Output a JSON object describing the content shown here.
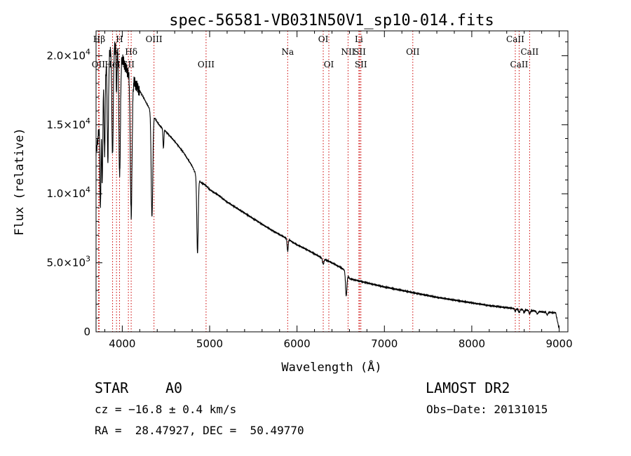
{
  "chart_data": {
    "type": "line",
    "title": "spec-56581-VB031N50V1_sp10-014.fits",
    "xlabel": "Wavelength (Å)",
    "ylabel": "Flux (relative)",
    "xlim": [
      3700,
      9100
    ],
    "ylim": [
      0,
      21800
    ],
    "x_ticks": [
      {
        "value": 4000,
        "label": "4000"
      },
      {
        "value": 5000,
        "label": "5000"
      },
      {
        "value": 6000,
        "label": "6000"
      },
      {
        "value": 7000,
        "label": "7000"
      },
      {
        "value": 8000,
        "label": "8000"
      },
      {
        "value": 9000,
        "label": "9000"
      }
    ],
    "y_ticks": [
      {
        "value": 0,
        "label": "0",
        "exp": ""
      },
      {
        "value": 5000,
        "label": "5.0×10",
        "exp": "3"
      },
      {
        "value": 10000,
        "label": "1.0×10",
        "exp": "4"
      },
      {
        "value": 15000,
        "label": "1.5×10",
        "exp": "4"
      },
      {
        "value": 20000,
        "label": "2.0×10",
        "exp": "4"
      }
    ],
    "grid": false,
    "line_color": "#000000",
    "marker_color": "#cc0000",
    "spectral_lines": [
      {
        "label": "Hβ",
        "x": 3736,
        "row": 0
      },
      {
        "label": "OII",
        "x": 3727,
        "row": 2
      },
      {
        "label": "K",
        "x": 3934,
        "row": 1
      },
      {
        "label": "H",
        "x": 3969,
        "row": 0
      },
      {
        "label": "HeI",
        "x": 3889,
        "row": 2
      },
      {
        "label": "Hδ",
        "x": 4102,
        "row": 1
      },
      {
        "label": "SII",
        "x": 4070,
        "row": 2
      },
      {
        "label": "OIII",
        "x": 4363,
        "row": 0
      },
      {
        "label": "OIII",
        "x": 4959,
        "row": 2
      },
      {
        "label": "Na",
        "x": 5893,
        "row": 1
      },
      {
        "label": "OI",
        "x": 6300,
        "row": 0
      },
      {
        "label": "OI",
        "x": 6364,
        "row": 2
      },
      {
        "label": "Li",
        "x": 6708,
        "row": 0
      },
      {
        "label": "NII",
        "x": 6584,
        "row": 1
      },
      {
        "label": "SII",
        "x": 6717,
        "row": 1
      },
      {
        "label": "SII",
        "x": 6731,
        "row": 2
      },
      {
        "label": "OII",
        "x": 7325,
        "row": 1
      },
      {
        "label": "CaII",
        "x": 8498,
        "row": 0
      },
      {
        "label": "CaII",
        "x": 8662,
        "row": 1
      },
      {
        "label": "CaII",
        "x": 8542,
        "row": 2
      }
    ],
    "continuum": [
      [
        3700,
        13000
      ],
      [
        3730,
        14500
      ],
      [
        3760,
        16500
      ],
      [
        3790,
        18500
      ],
      [
        3820,
        19500
      ],
      [
        3860,
        20300
      ],
      [
        3900,
        20800
      ],
      [
        3950,
        20500
      ],
      [
        4000,
        19800
      ],
      [
        4060,
        18900
      ],
      [
        4120,
        18200
      ],
      [
        4180,
        17700
      ],
      [
        4240,
        17000
      ],
      [
        4300,
        16300
      ],
      [
        4360,
        15600
      ],
      [
        4420,
        15000
      ],
      [
        4500,
        14500
      ],
      [
        4600,
        13800
      ],
      [
        4700,
        13000
      ],
      [
        4800,
        12000
      ],
      [
        4850,
        11300
      ],
      [
        4900,
        10800
      ],
      [
        4950,
        10650
      ],
      [
        5000,
        10300
      ],
      [
        5100,
        9900
      ],
      [
        5200,
        9400
      ],
      [
        5300,
        9000
      ],
      [
        5400,
        8600
      ],
      [
        5500,
        8200
      ],
      [
        5600,
        7800
      ],
      [
        5700,
        7400
      ],
      [
        5800,
        7050
      ],
      [
        5900,
        6700
      ],
      [
        6000,
        6300
      ],
      [
        6100,
        6000
      ],
      [
        6200,
        5650
      ],
      [
        6300,
        5300
      ],
      [
        6400,
        5000
      ],
      [
        6500,
        4650
      ],
      [
        6550,
        4450
      ],
      [
        6600,
        3850
      ],
      [
        6700,
        3700
      ],
      [
        6800,
        3550
      ],
      [
        6900,
        3400
      ],
      [
        7000,
        3250
      ],
      [
        7200,
        3000
      ],
      [
        7400,
        2750
      ],
      [
        7600,
        2500
      ],
      [
        7800,
        2300
      ],
      [
        8000,
        2100
      ],
      [
        8200,
        1900
      ],
      [
        8400,
        1750
      ],
      [
        8600,
        1600
      ],
      [
        8800,
        1450
      ],
      [
        8960,
        1380
      ],
      [
        9000,
        200
      ]
    ],
    "absorption": [
      {
        "center": 3750,
        "depth": 7000,
        "width": 6
      },
      {
        "center": 3771,
        "depth": 6500,
        "width": 6
      },
      {
        "center": 3798,
        "depth": 6000,
        "width": 6
      },
      {
        "center": 3835,
        "depth": 7500,
        "width": 7
      },
      {
        "center": 3889,
        "depth": 8000,
        "width": 8
      },
      {
        "center": 3934,
        "depth": 3500,
        "width": 4
      },
      {
        "center": 3970,
        "depth": 9000,
        "width": 9
      },
      {
        "center": 4102,
        "depth": 10000,
        "width": 10
      },
      {
        "center": 4340,
        "depth": 7500,
        "width": 9
      },
      {
        "center": 4471,
        "depth": 1400,
        "width": 5
      },
      {
        "center": 4861,
        "depth": 5500,
        "width": 8
      },
      {
        "center": 5893,
        "depth": 900,
        "width": 6
      },
      {
        "center": 6300,
        "depth": 400,
        "width": 8
      },
      {
        "center": 6563,
        "depth": 1700,
        "width": 8
      },
      {
        "center": 8498,
        "depth": 200,
        "width": 6
      },
      {
        "center": 8542,
        "depth": 250,
        "width": 8
      },
      {
        "center": 8598,
        "depth": 200,
        "width": 7
      },
      {
        "center": 8662,
        "depth": 250,
        "width": 8
      },
      {
        "center": 8750,
        "depth": 200,
        "width": 8
      },
      {
        "center": 8863,
        "depth": 200,
        "width": 8
      }
    ]
  },
  "info": {
    "object_type": "STAR",
    "subclass": "A0",
    "survey": "LAMOST DR2",
    "cz": "cz = −16.8 ± 0.4 km/s",
    "obs_date": "Obs−Date: 20131015",
    "coords": "RA =  28.47927, DEC =  50.49770"
  }
}
